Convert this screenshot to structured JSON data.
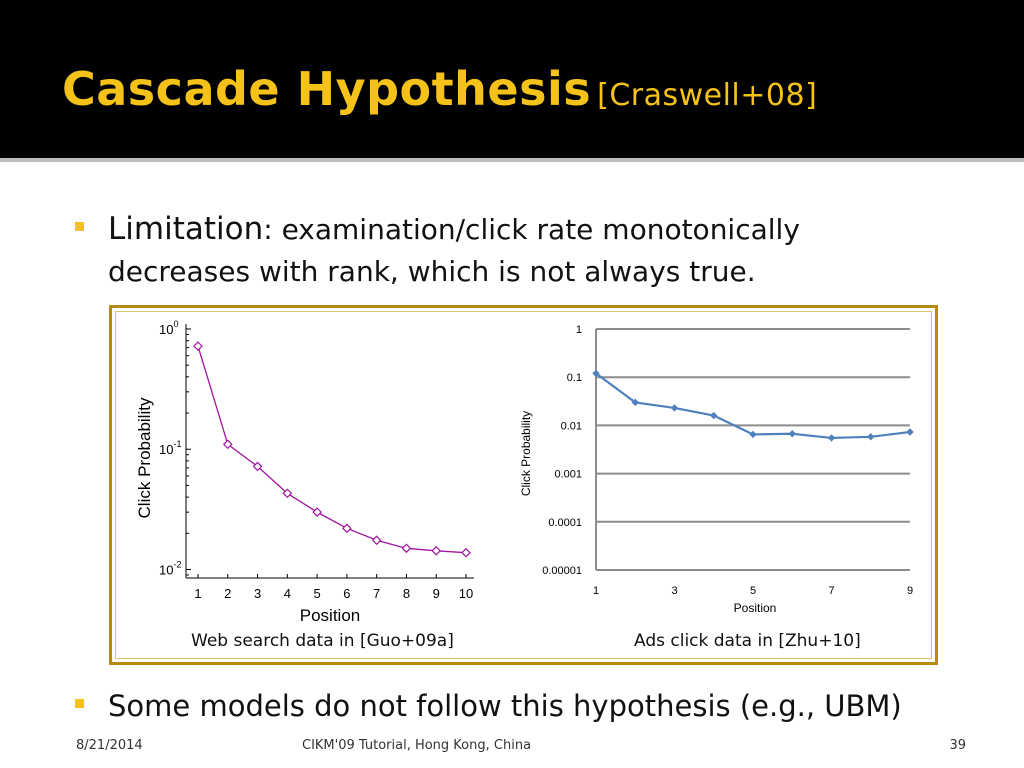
{
  "slide": {
    "title": "Cascade Hypothesis",
    "title_cite": "[Craswell+08]",
    "bullet1_lead": "Limitation",
    "bullet1_rest_line1": ": examination/click rate monotonically",
    "bullet1_rest_line2": "decreases with rank, which is not always true.",
    "bullet2": "Some models do not follow this hypothesis (e.g., UBM)",
    "caption_left": "Web search data in [Guo+09a]",
    "caption_right": "Ads click data in [Zhu+10]",
    "footer_date": "8/21/2014",
    "footer_center": "CIKM'09 Tutorial, Hong Kong, China",
    "footer_page": "39"
  },
  "colors": {
    "title": "#f5c21a",
    "bullet": "#f5c21a",
    "frame": "#b58a12",
    "left_series": "#a0149e",
    "right_series": "#4f81bd"
  },
  "chart_data": [
    {
      "type": "line",
      "scale_y": "log",
      "xlabel": "Position",
      "ylabel": "Click Probability",
      "x": [
        1,
        2,
        3,
        4,
        5,
        6,
        7,
        8,
        9,
        10
      ],
      "xticks": [
        "1",
        "2",
        "3",
        "4",
        "5",
        "6",
        "7",
        "8",
        "9",
        "10"
      ],
      "yticks": [
        {
          "value": 1,
          "base": "10",
          "exp": "0"
        },
        {
          "value": 0.1,
          "base": "10",
          "exp": "-1"
        },
        {
          "value": 0.01,
          "base": "10",
          "exp": "-2"
        }
      ],
      "ylim": [
        0.0085,
        1.1
      ],
      "series": [
        {
          "values": [
            0.72,
            0.11,
            0.072,
            0.043,
            0.03,
            0.022,
            0.0175,
            0.015,
            0.0143,
            0.0138
          ]
        }
      ],
      "marker": "diamond",
      "grid": false
    },
    {
      "type": "line",
      "scale_y": "log",
      "xlabel": "Position",
      "ylabel": "Click Probability",
      "x": [
        1,
        2,
        3,
        4,
        5,
        6,
        7,
        8,
        9
      ],
      "xticks": [
        "1",
        "3",
        "5",
        "7",
        "9"
      ],
      "yticks": [
        "1",
        "0.1",
        "0.01",
        "0.001",
        "0.0001",
        "0.00001"
      ],
      "ylim": [
        1e-05,
        1
      ],
      "series": [
        {
          "values": [
            0.12,
            0.03,
            0.023,
            0.016,
            0.0065,
            0.0067,
            0.0055,
            0.0058,
            0.0073
          ]
        }
      ],
      "marker": "diamond",
      "grid": true
    }
  ]
}
